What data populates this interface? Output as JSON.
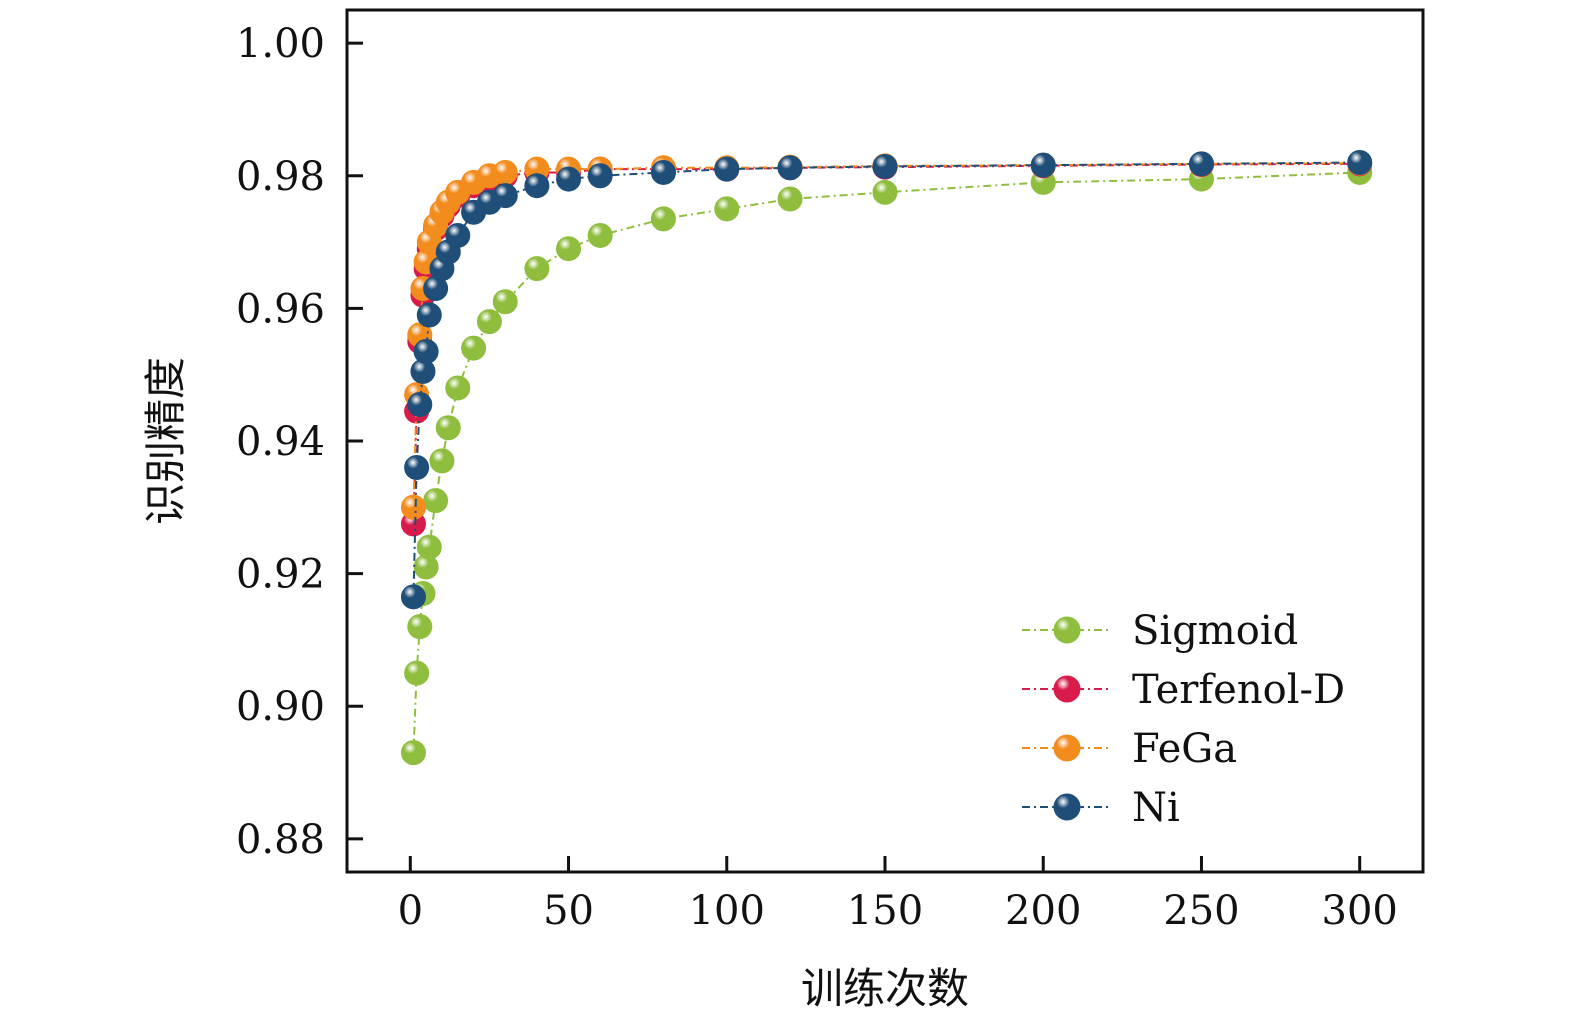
{
  "chart_data": {
    "type": "scatter",
    "xlabel": "训练次数",
    "ylabel": "识别精度",
    "xlim": [
      -20,
      320
    ],
    "ylim": [
      0.875,
      1.005
    ],
    "x_ticks": [
      0,
      50,
      100,
      150,
      200,
      250,
      300
    ],
    "x_tick_labels": [
      "0",
      "50",
      "100",
      "150",
      "200",
      "250",
      "300"
    ],
    "y_ticks": [
      0.88,
      0.9,
      0.92,
      0.94,
      0.96,
      0.98,
      1.0
    ],
    "y_tick_labels": [
      "0.88",
      "0.90",
      "0.92",
      "0.94",
      "0.96",
      "0.98",
      "1.00"
    ],
    "grid": false,
    "legend_position": "bottom-right",
    "x": [
      1,
      2,
      3,
      4,
      5,
      6,
      8,
      10,
      12,
      15,
      20,
      25,
      30,
      40,
      50,
      60,
      80,
      100,
      120,
      150,
      200,
      250,
      300
    ],
    "series": [
      {
        "name": "Sigmoid",
        "color": "#8fbe3f",
        "values": [
          0.893,
          0.905,
          0.912,
          0.917,
          0.921,
          0.924,
          0.931,
          0.937,
          0.942,
          0.948,
          0.954,
          0.958,
          0.961,
          0.966,
          0.969,
          0.971,
          0.9735,
          0.975,
          0.9765,
          0.9775,
          0.979,
          0.9795,
          0.9805
        ]
      },
      {
        "name": "Terfenol-D",
        "color": "#d81b4a",
        "values": [
          0.9275,
          0.9445,
          0.955,
          0.962,
          0.966,
          0.969,
          0.972,
          0.974,
          0.9755,
          0.977,
          0.9785,
          0.9795,
          0.98,
          0.9805,
          0.9805,
          0.981,
          0.981,
          0.981,
          0.9812,
          0.9813,
          0.9815,
          0.9817,
          0.9818
        ]
      },
      {
        "name": "FeGa",
        "color": "#f28c1c",
        "values": [
          0.93,
          0.947,
          0.956,
          0.963,
          0.967,
          0.97,
          0.9725,
          0.9745,
          0.976,
          0.9775,
          0.979,
          0.98,
          0.9805,
          0.981,
          0.981,
          0.981,
          0.9812,
          0.9812,
          0.9813,
          0.9815,
          0.9816,
          0.9818,
          0.9819
        ]
      },
      {
        "name": "Ni",
        "color": "#1f4e79",
        "values": [
          0.9165,
          0.936,
          0.9455,
          0.9505,
          0.9535,
          0.959,
          0.963,
          0.966,
          0.9685,
          0.971,
          0.9745,
          0.976,
          0.977,
          0.9785,
          0.9795,
          0.98,
          0.9805,
          0.981,
          0.9812,
          0.9814,
          0.9816,
          0.9818,
          0.982
        ]
      }
    ]
  }
}
